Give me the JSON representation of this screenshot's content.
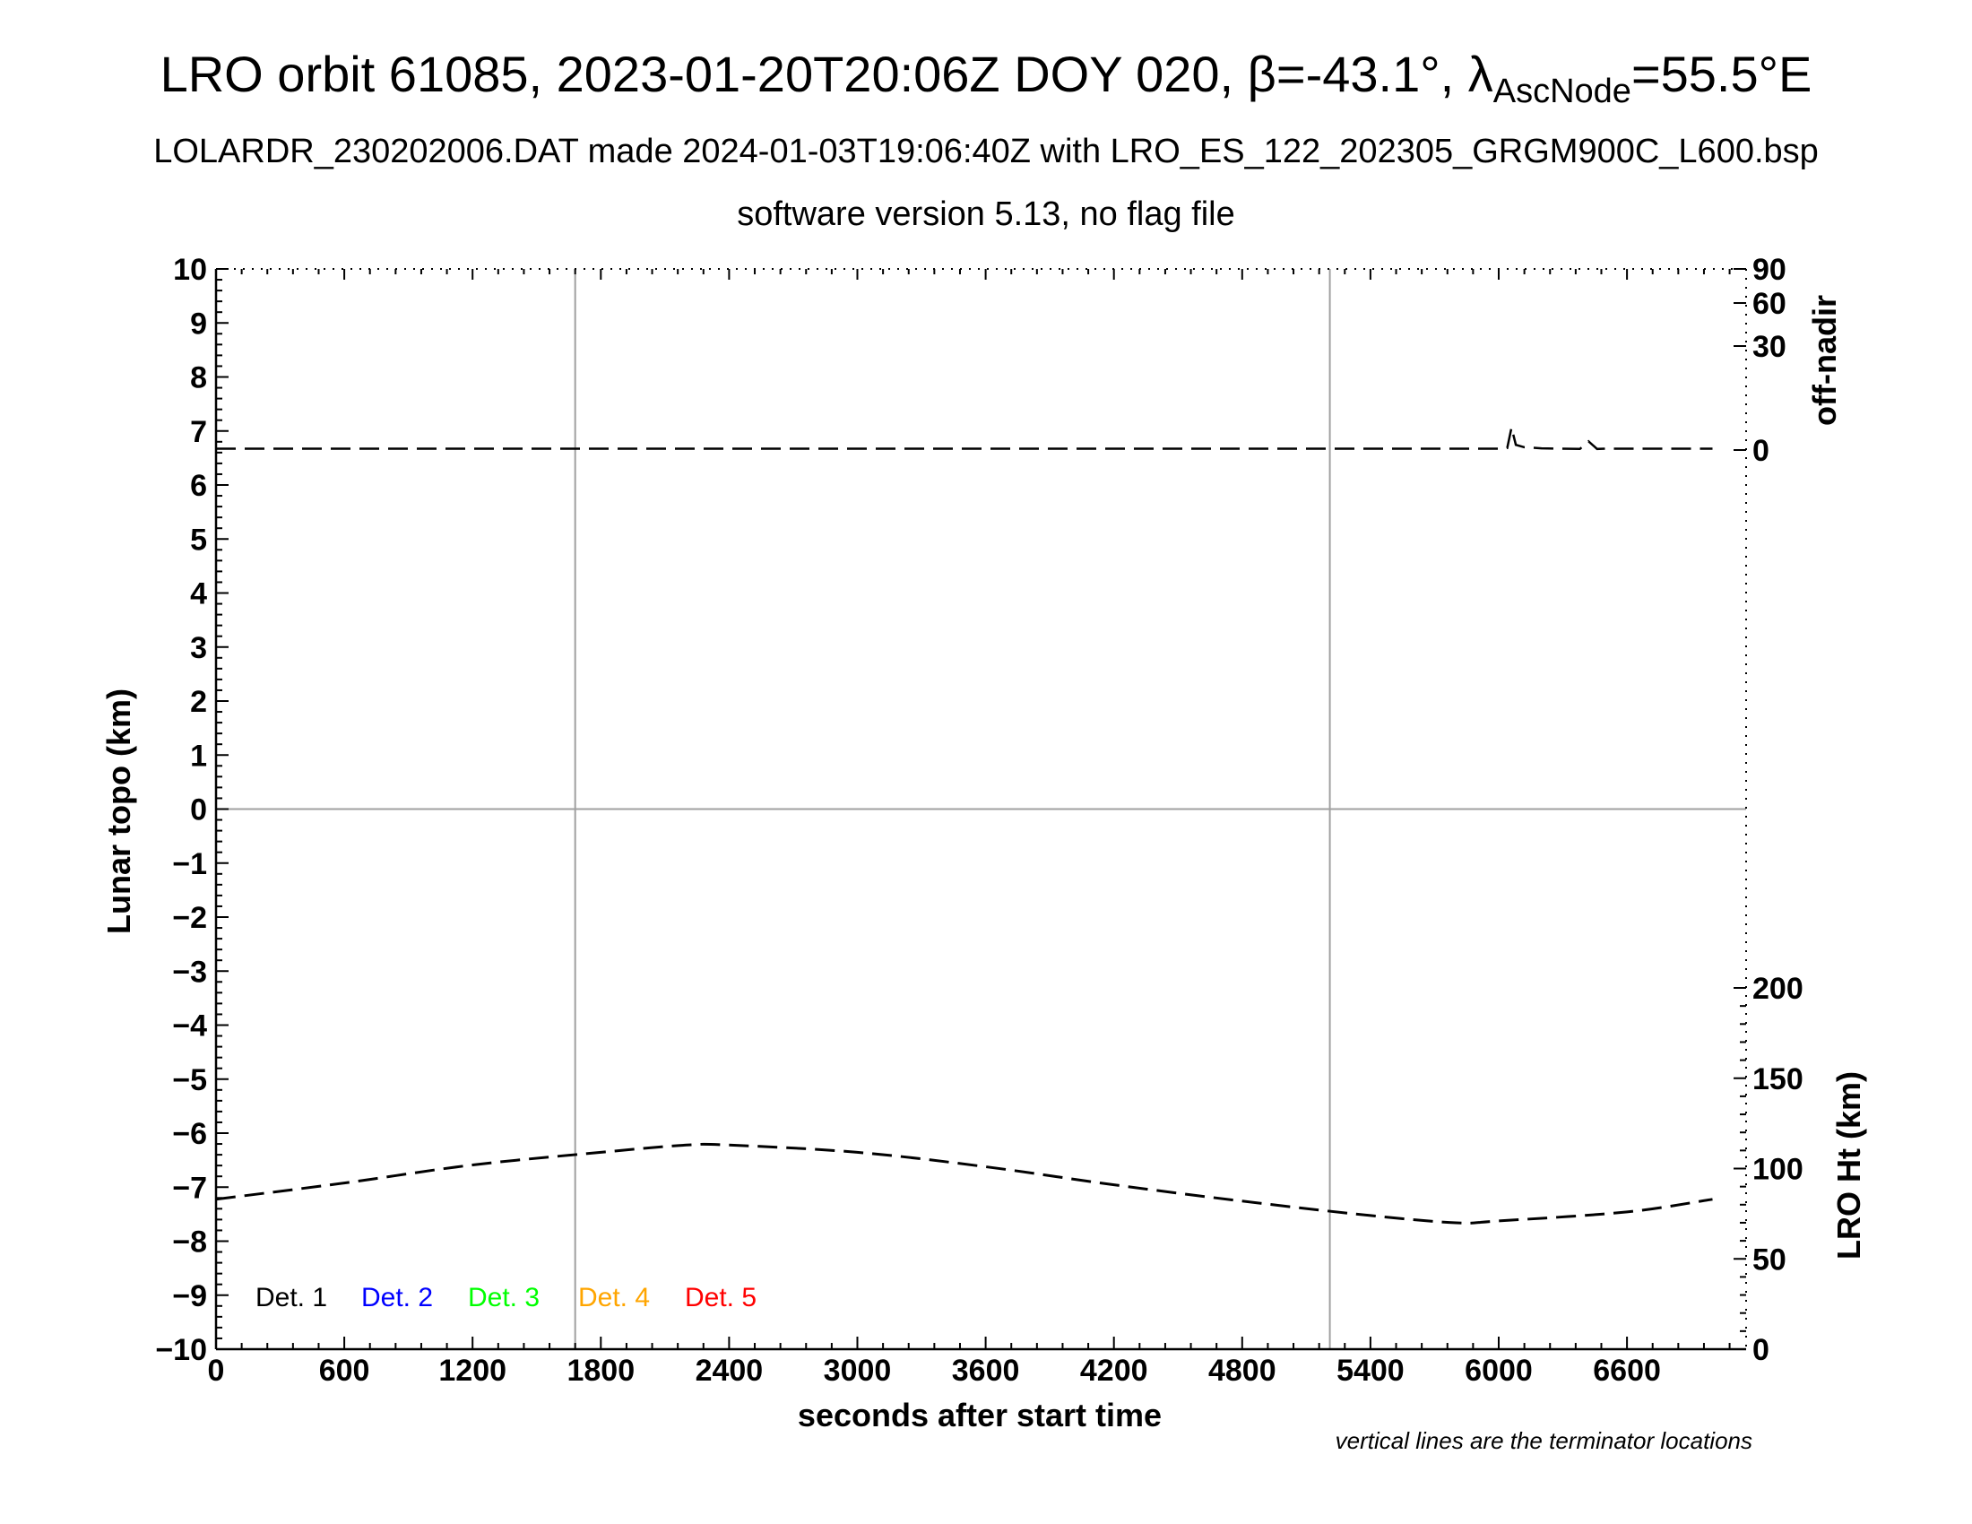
{
  "titles": {
    "line1_prefix": "LRO orbit 61085, 2023-01-20T20:06Z DOY 020, ",
    "beta": "β=-43.1°, ",
    "lambda": "λ",
    "lambda_sub": "AscNode",
    "lambda_val": "=55.5°E",
    "line2": "LOLARDR_230202006.DAT made 2024-01-03T19:06:40Z with LRO_ES_122_202305_GRGM900C_L600.bsp",
    "line3": "software version 5.13, no flag file"
  },
  "note": "vertical lines are the terminator locations",
  "chart_data": {
    "type": "line",
    "xlabel": "seconds after start time",
    "ylabel_left": "Lunar topo (km)",
    "ylabel_right_top": "off-nadir",
    "ylabel_right_bottom": "LRO Ht (km)",
    "xlim": [
      0,
      7140
    ],
    "x_ticks": [
      0,
      600,
      1200,
      1800,
      2400,
      3000,
      3600,
      4200,
      4800,
      5400,
      6000,
      6600
    ],
    "ylim_left": [
      -10,
      10
    ],
    "y_ticks_left": [
      10,
      9,
      8,
      7,
      6,
      5,
      4,
      3,
      2,
      1,
      0,
      -1,
      -2,
      -3,
      -4,
      -5,
      -6,
      -7,
      -8,
      -9,
      -10
    ],
    "right_top_ticks": [
      90,
      60,
      30,
      0
    ],
    "right_bottom_ticks": [
      200,
      150,
      100,
      50,
      0
    ],
    "terminator_x": [
      1680,
      5210
    ],
    "grid": "vertical lines at terminators, horizontal line at 0",
    "legend": [
      {
        "label": "Det. 1",
        "color": "#000000"
      },
      {
        "label": "Det. 2",
        "color": "#0000ff"
      },
      {
        "label": "Det. 3",
        "color": "#00ff00"
      },
      {
        "label": "Det. 4",
        "color": "#ffa500"
      },
      {
        "label": "Det. 5",
        "color": "#ff0000"
      }
    ],
    "series": [
      {
        "axis": "off-nadir",
        "style": "dashed",
        "x": [
          0,
          1000,
          2000,
          3000,
          4000,
          5000,
          6000,
          6040,
          6060,
          6080,
          6120,
          6200,
          6300,
          6380,
          6420,
          6460,
          6500,
          6600,
          7000
        ],
        "y": [
          0.4,
          0.4,
          0.4,
          0.4,
          0.4,
          0.4,
          0.4,
          0.6,
          6.5,
          1.5,
          0.8,
          0.5,
          0.4,
          0.3,
          2.5,
          0.3,
          0.4,
          0.4,
          0.4
        ]
      },
      {
        "axis": "LRO Ht",
        "style": "dashed",
        "x": [
          0,
          600,
          1200,
          1800,
          2200,
          2400,
          3000,
          3600,
          4200,
          4800,
          5400,
          5800,
          6000,
          6600,
          7000
        ],
        "y": [
          83,
          92,
          102,
          109,
          113,
          113,
          109,
          101,
          91,
          82,
          74,
          70,
          71,
          76,
          83
        ]
      }
    ]
  }
}
